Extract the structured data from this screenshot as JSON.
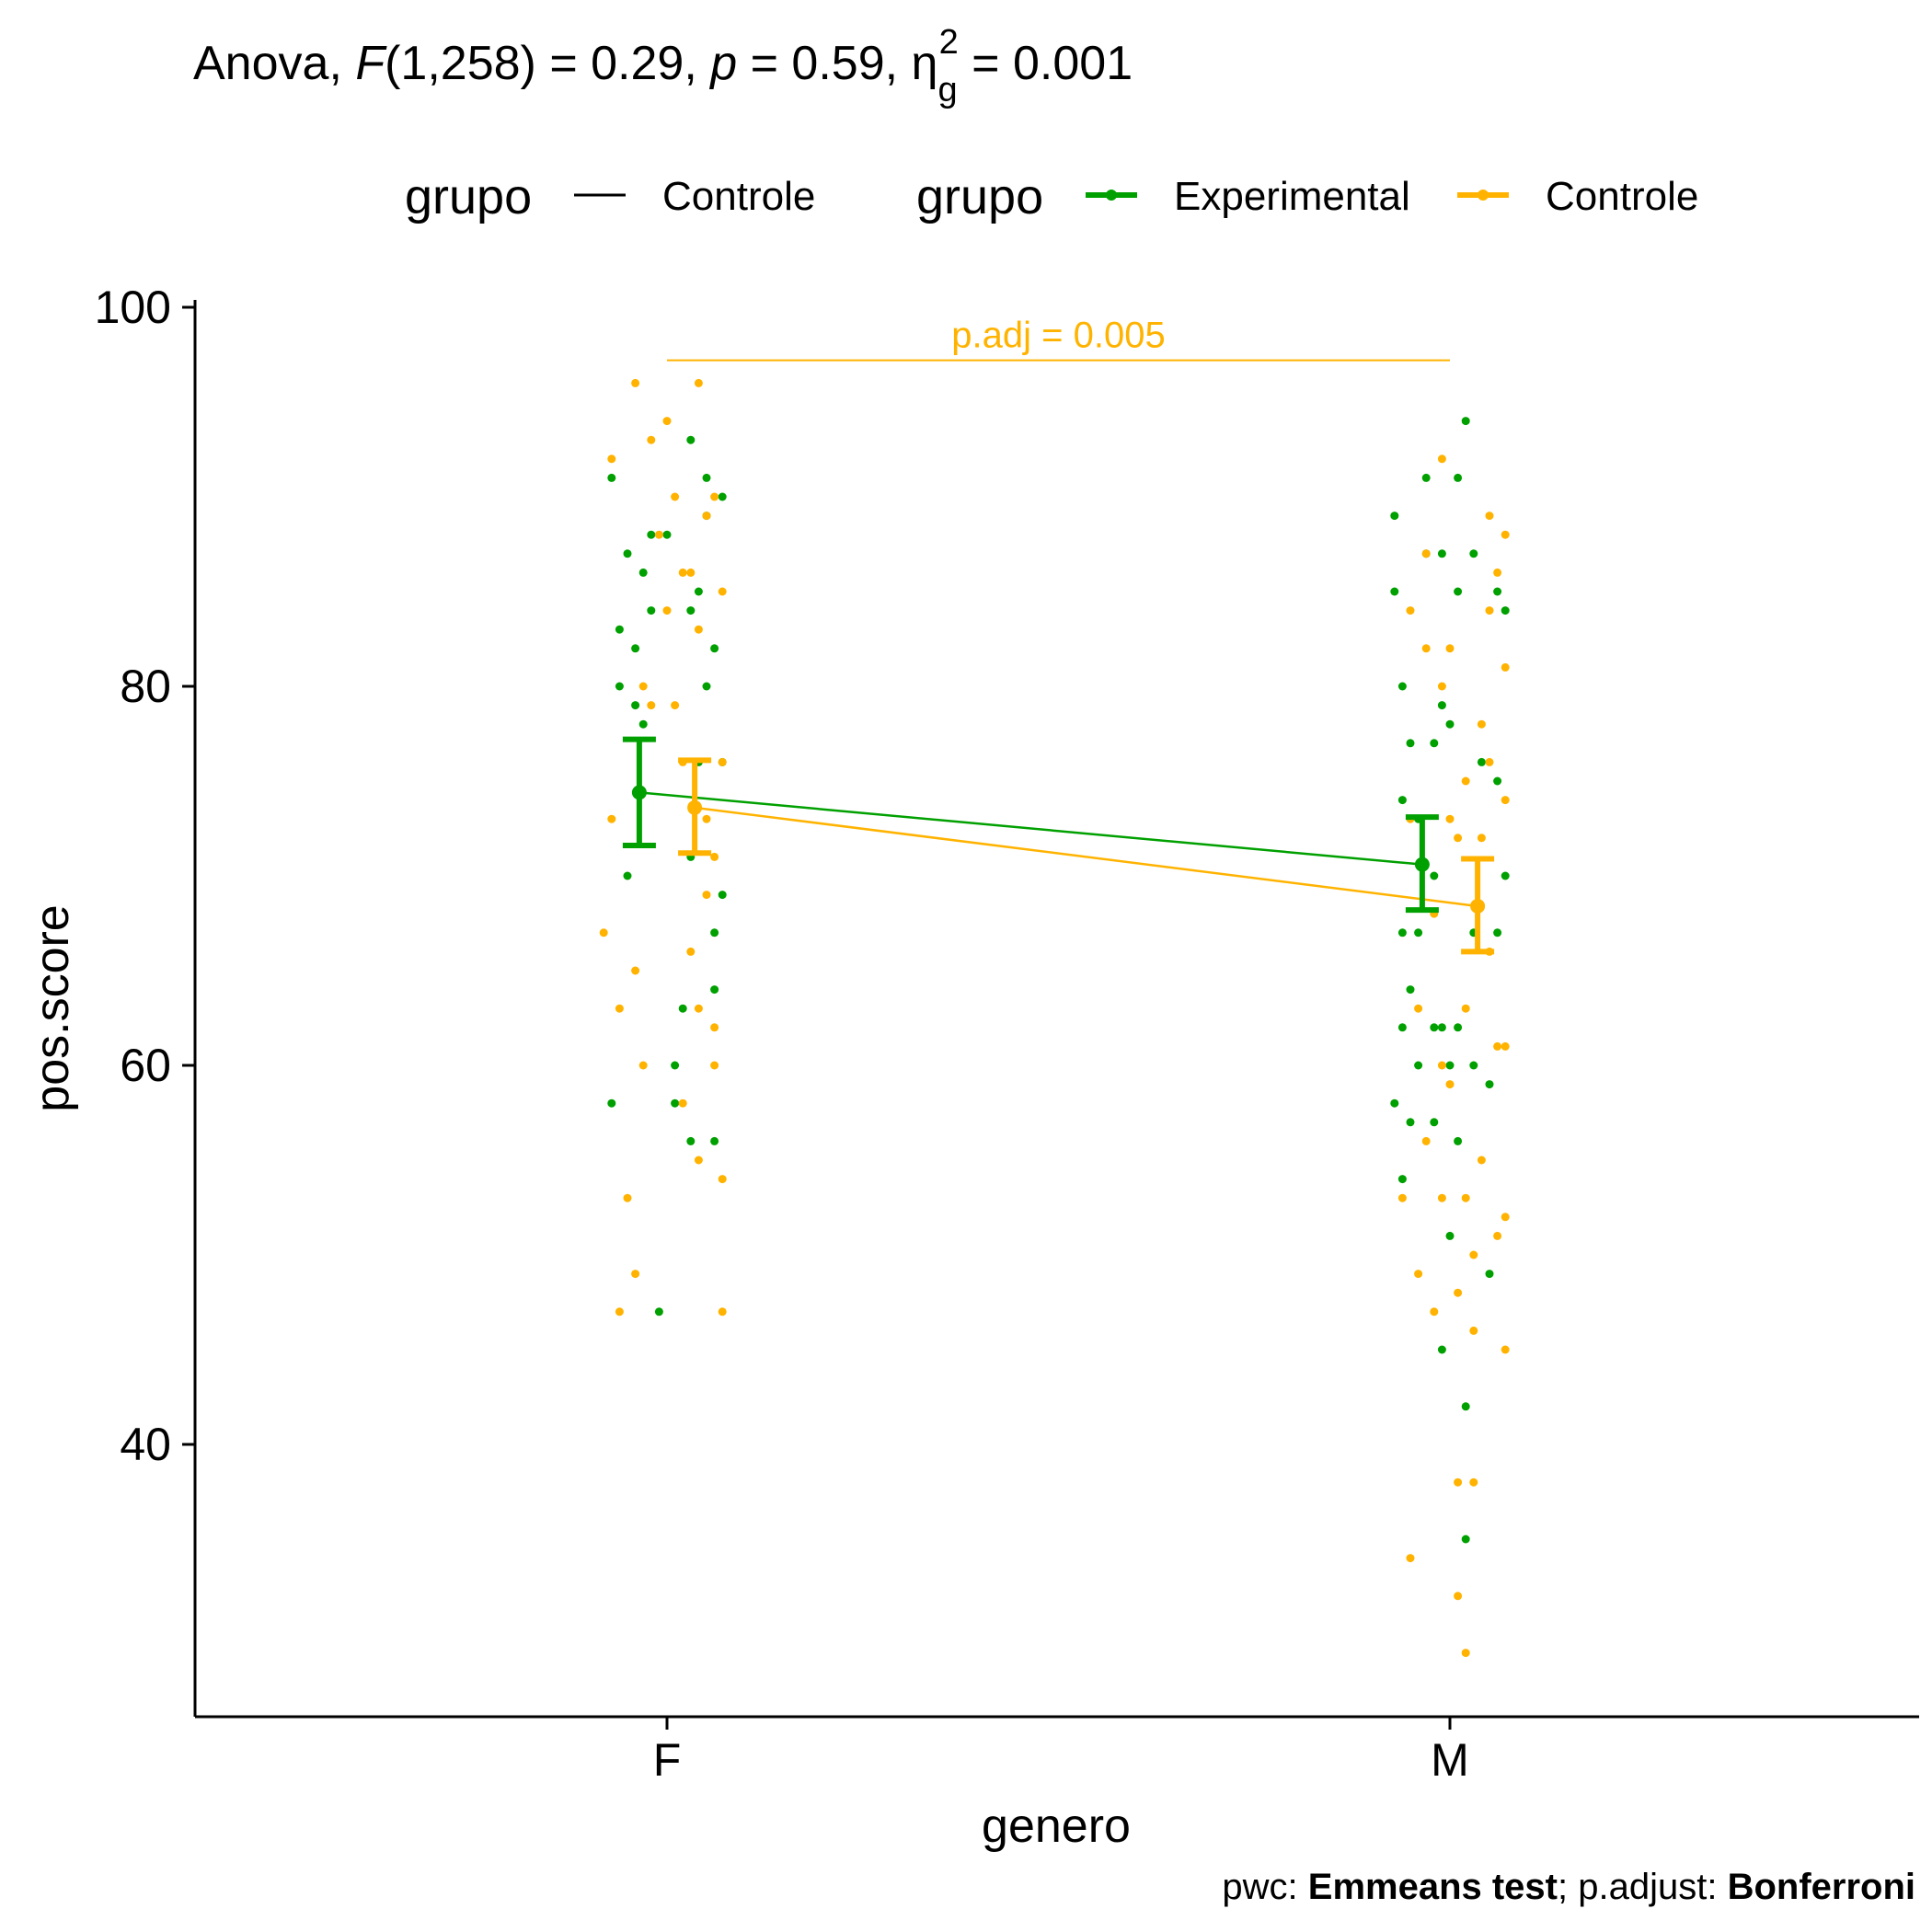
{
  "colors": {
    "experimental": "#00A000",
    "controle": "#FFB300",
    "axis": "#000000",
    "background": "#FFFFFF"
  },
  "chart_data": {
    "type": "scatter",
    "title": {
      "prefix": "Anova, ",
      "f_symbol": "F",
      "f_args": "(1,258) = 0.29, ",
      "p_symbol": "p",
      "p_value": " = 0.59, ",
      "eta_symbol": "η",
      "eta_sub": "g",
      "eta_sup": "2",
      "eta_value": " = 0.001"
    },
    "legend": {
      "placement": "top",
      "title_1": "grupo",
      "line_label": "Controle",
      "title_2": "grupo",
      "entries": [
        "Experimental",
        "Controle"
      ]
    },
    "xlabel": "genero",
    "ylabel": "pos.score",
    "categories": [
      "F",
      "M"
    ],
    "yticks": [
      40,
      60,
      80,
      100
    ],
    "ylim": [
      26,
      100
    ],
    "grid": false,
    "comparison": {
      "label": "p.adj = 0.005",
      "y": 97.2,
      "from": "F",
      "to": "M",
      "series": "Controle"
    },
    "caption": {
      "p1": "pwc: ",
      "b1": "Emmeans test",
      "p2": "; p.adjust: ",
      "b2": "Bonferroni"
    },
    "series": [
      {
        "name": "Experimental",
        "mean": [
          74.4,
          70.6
        ],
        "ci_low": [
          71.6,
          68.2
        ],
        "ci_high": [
          77.2,
          73.1
        ],
        "points": [
          {
            "g": "F",
            "x": -0.07,
            "y": 91
          },
          {
            "g": "F",
            "x": -0.05,
            "y": 87
          },
          {
            "g": "F",
            "x": -0.06,
            "y": 83
          },
          {
            "g": "F",
            "x": -0.04,
            "y": 82
          },
          {
            "g": "F",
            "x": -0.06,
            "y": 80
          },
          {
            "g": "F",
            "x": -0.04,
            "y": 79
          },
          {
            "g": "F",
            "x": -0.03,
            "y": 78
          },
          {
            "g": "F",
            "x": -0.05,
            "y": 70
          },
          {
            "g": "F",
            "x": -0.07,
            "y": 58
          },
          {
            "g": "F",
            "x": -0.02,
            "y": 88
          },
          {
            "g": "F",
            "x": -0.03,
            "y": 86
          },
          {
            "g": "F",
            "x": -0.02,
            "y": 84
          },
          {
            "g": "F",
            "x": -0.01,
            "y": 47
          },
          {
            "g": "F",
            "x": 0.0,
            "y": 88
          },
          {
            "g": "F",
            "x": 0.01,
            "y": 60
          },
          {
            "g": "F",
            "x": 0.01,
            "y": 58
          },
          {
            "g": "F",
            "x": 0.02,
            "y": 63
          },
          {
            "g": "F",
            "x": 0.03,
            "y": 84
          },
          {
            "g": "F",
            "x": 0.03,
            "y": 71
          },
          {
            "g": "F",
            "x": 0.03,
            "y": 56
          },
          {
            "g": "F",
            "x": 0.04,
            "y": 85
          },
          {
            "g": "F",
            "x": 0.04,
            "y": 76
          },
          {
            "g": "F",
            "x": 0.03,
            "y": 93
          },
          {
            "g": "F",
            "x": 0.05,
            "y": 91
          },
          {
            "g": "F",
            "x": 0.05,
            "y": 89
          },
          {
            "g": "F",
            "x": 0.05,
            "y": 80
          },
          {
            "g": "F",
            "x": 0.06,
            "y": 64
          },
          {
            "g": "F",
            "x": 0.06,
            "y": 56
          },
          {
            "g": "F",
            "x": 0.06,
            "y": 82
          },
          {
            "g": "F",
            "x": 0.06,
            "y": 67
          },
          {
            "g": "F",
            "x": 0.07,
            "y": 90
          },
          {
            "g": "F",
            "x": 0.07,
            "y": 76
          },
          {
            "g": "F",
            "x": 0.07,
            "y": 69
          },
          {
            "g": "M",
            "x": -0.07,
            "y": 89
          },
          {
            "g": "M",
            "x": -0.07,
            "y": 85
          },
          {
            "g": "M",
            "x": -0.06,
            "y": 80
          },
          {
            "g": "M",
            "x": -0.06,
            "y": 74
          },
          {
            "g": "M",
            "x": -0.06,
            "y": 67
          },
          {
            "g": "M",
            "x": -0.06,
            "y": 62
          },
          {
            "g": "M",
            "x": -0.07,
            "y": 58
          },
          {
            "g": "M",
            "x": -0.06,
            "y": 54
          },
          {
            "g": "M",
            "x": -0.05,
            "y": 64
          },
          {
            "g": "M",
            "x": -0.05,
            "y": 77
          },
          {
            "g": "M",
            "x": -0.05,
            "y": 57
          },
          {
            "g": "M",
            "x": -0.04,
            "y": 73
          },
          {
            "g": "M",
            "x": -0.04,
            "y": 67
          },
          {
            "g": "M",
            "x": -0.04,
            "y": 60
          },
          {
            "g": "M",
            "x": -0.03,
            "y": 91
          },
          {
            "g": "M",
            "x": -0.03,
            "y": 87
          },
          {
            "g": "M",
            "x": -0.02,
            "y": 77
          },
          {
            "g": "M",
            "x": -0.02,
            "y": 70
          },
          {
            "g": "M",
            "x": -0.02,
            "y": 62
          },
          {
            "g": "M",
            "x": -0.02,
            "y": 57
          },
          {
            "g": "M",
            "x": -0.01,
            "y": 87
          },
          {
            "g": "M",
            "x": -0.01,
            "y": 79
          },
          {
            "g": "M",
            "x": -0.01,
            "y": 62
          },
          {
            "g": "M",
            "x": -0.01,
            "y": 45
          },
          {
            "g": "M",
            "x": 0.0,
            "y": 78
          },
          {
            "g": "M",
            "x": 0.0,
            "y": 60
          },
          {
            "g": "M",
            "x": 0.01,
            "y": 56
          },
          {
            "g": "M",
            "x": 0.0,
            "y": 51
          },
          {
            "g": "M",
            "x": 0.01,
            "y": 91
          },
          {
            "g": "M",
            "x": 0.01,
            "y": 85
          },
          {
            "g": "M",
            "x": 0.01,
            "y": 62
          },
          {
            "g": "M",
            "x": 0.02,
            "y": 94
          },
          {
            "g": "M",
            "x": 0.02,
            "y": 42
          },
          {
            "g": "M",
            "x": 0.02,
            "y": 35
          },
          {
            "g": "M",
            "x": 0.03,
            "y": 87
          },
          {
            "g": "M",
            "x": 0.03,
            "y": 67
          },
          {
            "g": "M",
            "x": 0.03,
            "y": 60
          },
          {
            "g": "M",
            "x": 0.04,
            "y": 76
          },
          {
            "g": "M",
            "x": 0.05,
            "y": 59
          },
          {
            "g": "M",
            "x": 0.05,
            "y": 49
          },
          {
            "g": "M",
            "x": 0.06,
            "y": 85
          },
          {
            "g": "M",
            "x": 0.06,
            "y": 75
          },
          {
            "g": "M",
            "x": 0.06,
            "y": 67
          },
          {
            "g": "M",
            "x": 0.07,
            "y": 70
          },
          {
            "g": "M",
            "x": 0.07,
            "y": 84
          }
        ]
      },
      {
        "name": "Controle",
        "mean": [
          73.6,
          68.4
        ],
        "ci_low": [
          71.2,
          66.0
        ],
        "ci_high": [
          76.1,
          70.9
        ],
        "points": [
          {
            "g": "F",
            "x": -0.07,
            "y": 92
          },
          {
            "g": "F",
            "x": -0.08,
            "y": 67
          },
          {
            "g": "F",
            "x": -0.07,
            "y": 73
          },
          {
            "g": "F",
            "x": -0.06,
            "y": 63
          },
          {
            "g": "F",
            "x": -0.05,
            "y": 53
          },
          {
            "g": "F",
            "x": -0.04,
            "y": 96
          },
          {
            "g": "F",
            "x": -0.04,
            "y": 65
          },
          {
            "g": "F",
            "x": -0.04,
            "y": 49
          },
          {
            "g": "F",
            "x": -0.03,
            "y": 60
          },
          {
            "g": "F",
            "x": -0.03,
            "y": 80
          },
          {
            "g": "F",
            "x": -0.02,
            "y": 93
          },
          {
            "g": "F",
            "x": -0.02,
            "y": 79
          },
          {
            "g": "F",
            "x": -0.06,
            "y": 47
          },
          {
            "g": "F",
            "x": -0.01,
            "y": 88
          },
          {
            "g": "F",
            "x": 0.0,
            "y": 94
          },
          {
            "g": "F",
            "x": 0.0,
            "y": 84
          },
          {
            "g": "F",
            "x": 0.01,
            "y": 79
          },
          {
            "g": "F",
            "x": 0.01,
            "y": 90
          },
          {
            "g": "F",
            "x": 0.02,
            "y": 86
          },
          {
            "g": "F",
            "x": 0.02,
            "y": 76
          },
          {
            "g": "F",
            "x": 0.02,
            "y": 58
          },
          {
            "g": "F",
            "x": 0.03,
            "y": 66
          },
          {
            "g": "F",
            "x": 0.03,
            "y": 86
          },
          {
            "g": "F",
            "x": 0.04,
            "y": 83
          },
          {
            "g": "F",
            "x": 0.04,
            "y": 63
          },
          {
            "g": "F",
            "x": 0.04,
            "y": 55
          },
          {
            "g": "F",
            "x": 0.04,
            "y": 96
          },
          {
            "g": "F",
            "x": 0.05,
            "y": 89
          },
          {
            "g": "F",
            "x": 0.05,
            "y": 73
          },
          {
            "g": "F",
            "x": 0.05,
            "y": 69
          },
          {
            "g": "F",
            "x": 0.06,
            "y": 62
          },
          {
            "g": "F",
            "x": 0.06,
            "y": 90
          },
          {
            "g": "F",
            "x": 0.06,
            "y": 71
          },
          {
            "g": "F",
            "x": 0.06,
            "y": 60
          },
          {
            "g": "F",
            "x": 0.07,
            "y": 85
          },
          {
            "g": "F",
            "x": 0.07,
            "y": 54
          },
          {
            "g": "F",
            "x": 0.07,
            "y": 47
          },
          {
            "g": "F",
            "x": 0.07,
            "y": 76
          },
          {
            "g": "M",
            "x": -0.06,
            "y": 53
          },
          {
            "g": "M",
            "x": -0.05,
            "y": 73
          },
          {
            "g": "M",
            "x": -0.05,
            "y": 34
          },
          {
            "g": "M",
            "x": -0.05,
            "y": 84
          },
          {
            "g": "M",
            "x": -0.04,
            "y": 63
          },
          {
            "g": "M",
            "x": -0.04,
            "y": 49
          },
          {
            "g": "M",
            "x": -0.03,
            "y": 87
          },
          {
            "g": "M",
            "x": -0.03,
            "y": 82
          },
          {
            "g": "M",
            "x": -0.03,
            "y": 56
          },
          {
            "g": "M",
            "x": -0.02,
            "y": 68
          },
          {
            "g": "M",
            "x": -0.02,
            "y": 47
          },
          {
            "g": "M",
            "x": -0.01,
            "y": 92
          },
          {
            "g": "M",
            "x": -0.01,
            "y": 80
          },
          {
            "g": "M",
            "x": -0.01,
            "y": 60
          },
          {
            "g": "M",
            "x": -0.01,
            "y": 53
          },
          {
            "g": "M",
            "x": 0.0,
            "y": 82
          },
          {
            "g": "M",
            "x": 0.0,
            "y": 73
          },
          {
            "g": "M",
            "x": 0.0,
            "y": 59
          },
          {
            "g": "M",
            "x": 0.01,
            "y": 72
          },
          {
            "g": "M",
            "x": 0.01,
            "y": 48
          },
          {
            "g": "M",
            "x": 0.01,
            "y": 32
          },
          {
            "g": "M",
            "x": 0.01,
            "y": 38
          },
          {
            "g": "M",
            "x": 0.02,
            "y": 75
          },
          {
            "g": "M",
            "x": 0.02,
            "y": 63
          },
          {
            "g": "M",
            "x": 0.02,
            "y": 53
          },
          {
            "g": "M",
            "x": 0.02,
            "y": 29
          },
          {
            "g": "M",
            "x": 0.03,
            "y": 50
          },
          {
            "g": "M",
            "x": 0.03,
            "y": 46
          },
          {
            "g": "M",
            "x": 0.03,
            "y": 38
          },
          {
            "g": "M",
            "x": 0.04,
            "y": 78
          },
          {
            "g": "M",
            "x": 0.04,
            "y": 72
          },
          {
            "g": "M",
            "x": 0.04,
            "y": 55
          },
          {
            "g": "M",
            "x": 0.05,
            "y": 89
          },
          {
            "g": "M",
            "x": 0.05,
            "y": 84
          },
          {
            "g": "M",
            "x": 0.05,
            "y": 76
          },
          {
            "g": "M",
            "x": 0.05,
            "y": 66
          },
          {
            "g": "M",
            "x": 0.06,
            "y": 86
          },
          {
            "g": "M",
            "x": 0.06,
            "y": 61
          },
          {
            "g": "M",
            "x": 0.06,
            "y": 51
          },
          {
            "g": "M",
            "x": 0.07,
            "y": 88
          },
          {
            "g": "M",
            "x": 0.07,
            "y": 81
          },
          {
            "g": "M",
            "x": 0.07,
            "y": 74
          },
          {
            "g": "M",
            "x": 0.07,
            "y": 52
          },
          {
            "g": "M",
            "x": 0.07,
            "y": 45
          },
          {
            "g": "M",
            "x": 0.07,
            "y": 61
          }
        ]
      }
    ]
  }
}
